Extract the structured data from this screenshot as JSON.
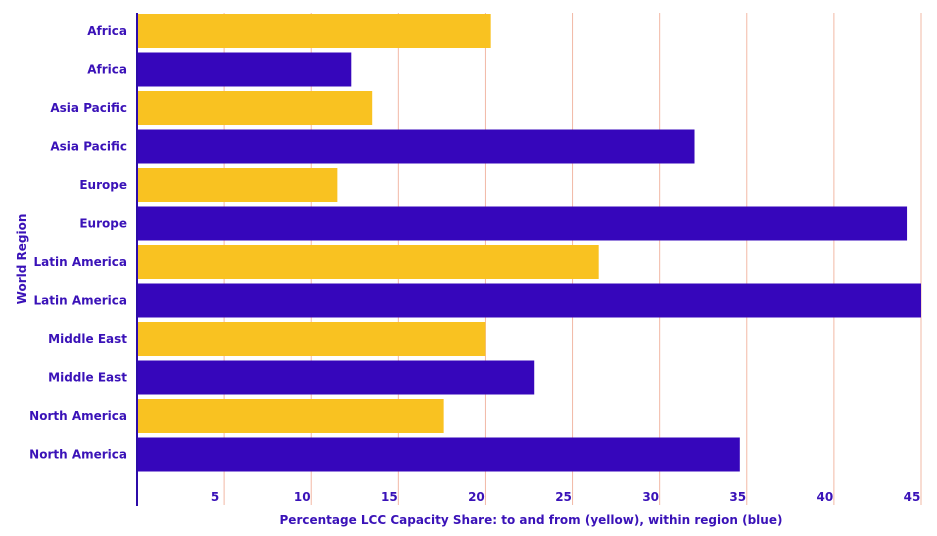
{
  "chart_data": {
    "type": "bar",
    "orientation": "horizontal",
    "categories": [
      "Africa",
      "Africa",
      "Asia Pacific",
      "Asia Pacific",
      "Europe",
      "Europe",
      "Latin America",
      "Latin America",
      "Middle East",
      "Middle East",
      "North America",
      "North America"
    ],
    "values": [
      20.3,
      12.3,
      13.5,
      32.0,
      11.5,
      44.2,
      26.5,
      45.0,
      20.0,
      22.8,
      17.6,
      34.6
    ],
    "bar_colors": [
      "#f9c221",
      "#3606bb",
      "#f9c221",
      "#3606bb",
      "#f9c221",
      "#3606bb",
      "#f9c221",
      "#3606bb",
      "#f9c221",
      "#3606bb",
      "#f9c221",
      "#3606bb"
    ],
    "xticks": [
      5,
      10,
      15,
      20,
      25,
      30,
      35,
      40,
      45
    ],
    "xlim": [
      0,
      45
    ],
    "xlabel": "Percentage LCC Capacity Share: to and from (yellow), within region (blue)",
    "ylabel": "World Region",
    "grid": "vertical",
    "colors": {
      "yellow": "#f9c221",
      "blue": "#3606bb",
      "grid": "#f2b8a6",
      "axis": "#2c0ba8",
      "text": "#3a12b8"
    }
  }
}
